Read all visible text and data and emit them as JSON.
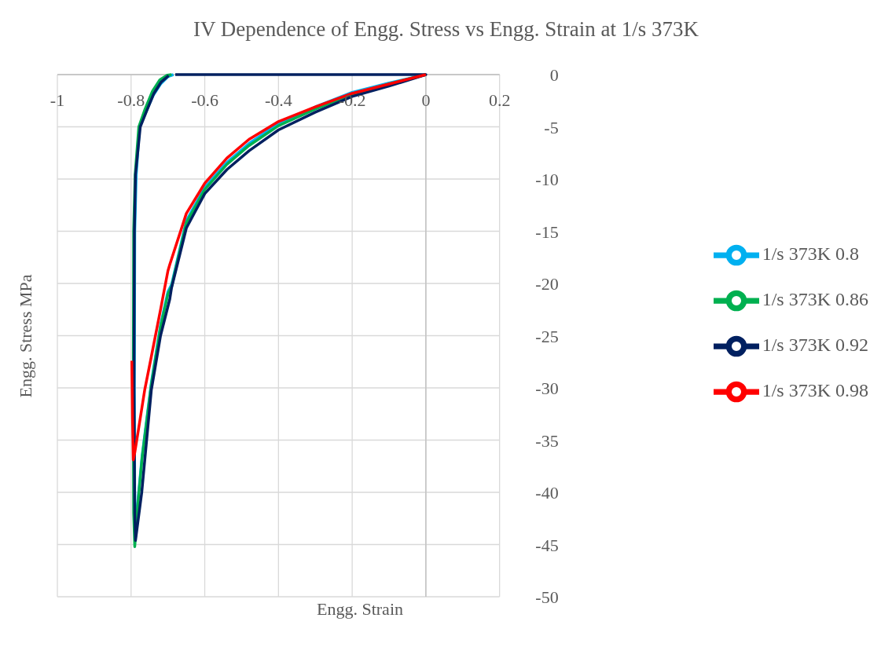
{
  "chart_data": {
    "type": "line",
    "title": "IV Dependence of Engg. Stress vs Engg. Strain at 1/s 373K",
    "xlabel": "Engg. Strain",
    "ylabel": "Engg. Stress MPa",
    "xlim": [
      -1,
      0.2
    ],
    "xticks": [
      -1,
      -0.8,
      -0.6,
      -0.4,
      -0.2,
      0,
      0.2
    ],
    "ylim": [
      -50,
      0
    ],
    "yticks": [
      -50,
      -45,
      -40,
      -35,
      -30,
      -25,
      -20,
      -15,
      -10,
      -5,
      0
    ],
    "grid": true,
    "legend": "right",
    "marker": "none",
    "series": [
      {
        "name": "1/s 373K 0.8",
        "color": "#00b0f0",
        "x": [
          0,
          -0.1,
          -0.2,
          -0.3,
          -0.4,
          -0.48,
          -0.54,
          -0.6,
          -0.65,
          -0.69,
          -0.7,
          -0.72,
          -0.745,
          -0.77,
          -0.782,
          -0.789,
          -0.79,
          -0.791,
          -0.79,
          -0.786,
          -0.777,
          -0.76,
          -0.74,
          -0.72,
          -0.7,
          -0.685
        ],
        "values": [
          0,
          -0.8,
          -1.7,
          -3.1,
          -4.7,
          -6.6,
          -8.4,
          -10.8,
          -14,
          -20.1,
          -20.8,
          -24,
          -29.5,
          -36.5,
          -41,
          -44.3,
          -42,
          -30,
          -15,
          -9.6,
          -5,
          -3.6,
          -2,
          -0.9,
          -0.2,
          0
        ]
      },
      {
        "name": "1/s 373K 0.86",
        "color": "#00b050",
        "x": [
          0,
          -0.1,
          -0.2,
          -0.3,
          -0.4,
          -0.48,
          -0.54,
          -0.6,
          -0.65,
          -0.69,
          -0.7,
          -0.72,
          -0.745,
          -0.77,
          -0.782,
          -0.79,
          -0.793,
          -0.794,
          -0.793,
          -0.789,
          -0.779,
          -0.762,
          -0.742,
          -0.722,
          -0.702,
          -0.69
        ],
        "values": [
          0,
          -0.9,
          -1.9,
          -3.3,
          -4.9,
          -6.8,
          -8.6,
          -11,
          -14.2,
          -20.3,
          -21,
          -24.2,
          -29.7,
          -36.7,
          -41.3,
          -45.2,
          -42,
          -30,
          -15,
          -9.6,
          -5,
          -3.3,
          -1.6,
          -0.5,
          -0.05,
          0
        ]
      },
      {
        "name": "1/s 373K 0.92",
        "color": "#002060",
        "x": [
          -0.68,
          0,
          -0.1,
          -0.2,
          -0.3,
          -0.4,
          -0.48,
          -0.54,
          -0.6,
          -0.65,
          -0.69,
          -0.695,
          -0.72,
          -0.745,
          -0.771,
          -0.782,
          -0.788,
          -0.79,
          -0.792,
          -0.791,
          -0.788,
          -0.775,
          -0.758,
          -0.738,
          -0.718,
          -0.698
        ],
        "values": [
          0,
          0,
          -1.1,
          -2.1,
          -3.6,
          -5.3,
          -7.3,
          -9.1,
          -11.4,
          -14.7,
          -20.4,
          -21.5,
          -25,
          -30.2,
          -40,
          -43,
          -44.6,
          -42,
          -30,
          -15,
          -9.6,
          -5,
          -3.5,
          -1.8,
          -0.7,
          -0.1
        ]
      },
      {
        "name": "1/s 373K 0.98",
        "color": "#ff0000",
        "x": [
          0,
          -0.1,
          -0.2,
          -0.3,
          -0.4,
          -0.48,
          -0.54,
          -0.6,
          -0.65,
          -0.695,
          -0.7,
          -0.72,
          -0.745,
          -0.763,
          -0.78,
          -0.79,
          -0.794,
          -0.796,
          -0.798
        ],
        "values": [
          0,
          -0.9,
          -1.8,
          -3.1,
          -4.5,
          -6.2,
          -8,
          -10.4,
          -13.3,
          -18.2,
          -18.8,
          -22.5,
          -27,
          -30.2,
          -34,
          -36.2,
          -36.9,
          -33,
          -27.4
        ]
      }
    ]
  }
}
